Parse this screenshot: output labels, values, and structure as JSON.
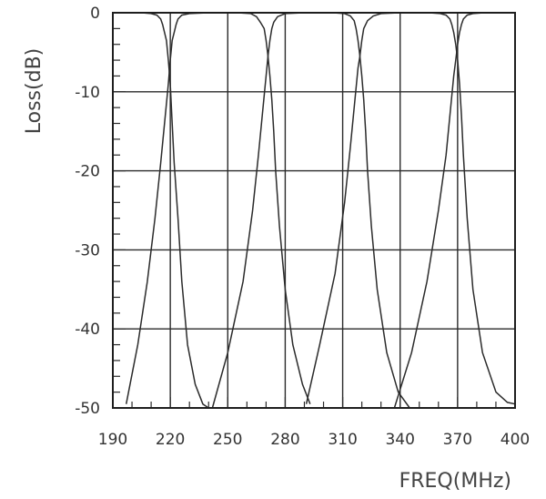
{
  "chart_data": {
    "type": "line",
    "xlabel": "FREQ(MHz)",
    "ylabel": "Loss(dB)",
    "xlim": [
      190,
      400
    ],
    "ylim": [
      -50,
      0
    ],
    "x_ticks": [
      190,
      220,
      250,
      280,
      310,
      340,
      370,
      400
    ],
    "y_ticks": [
      0,
      -10,
      -20,
      -30,
      -40,
      -50
    ],
    "grid": true,
    "series": [
      {
        "x": [
          197,
          203,
          208,
          212,
          215,
          217,
          219,
          220,
          221,
          222,
          223,
          224,
          226,
          230,
          240,
          260,
          400
        ],
        "y": [
          -49.5,
          -42,
          -34,
          -26,
          -19,
          -14,
          -9,
          -6,
          -3.5,
          -2.5,
          -1.5,
          -0.8,
          -0.3,
          -0.1,
          0,
          0,
          0
        ]
      },
      {
        "x": [
          190,
          205,
          210,
          213,
          215,
          216,
          217,
          218,
          219,
          220,
          221,
          222,
          224,
          226,
          229,
          233,
          237,
          240
        ],
        "y": [
          0,
          0,
          -0.1,
          -0.3,
          -0.8,
          -1.5,
          -2.5,
          -3.5,
          -6,
          -9,
          -14,
          -19,
          -26,
          -34,
          -42,
          -47,
          -49.5,
          -50
        ]
      },
      {
        "x": [
          242,
          250,
          258,
          263,
          266,
          268,
          270,
          271,
          272,
          273,
          274,
          276,
          280,
          290,
          310,
          400
        ],
        "y": [
          -50,
          -43,
          -34,
          -25,
          -18,
          -13,
          -8,
          -5.5,
          -3.5,
          -2,
          -1.2,
          -0.5,
          -0.1,
          0,
          0,
          0
        ]
      },
      {
        "x": [
          190,
          255,
          262,
          265,
          267,
          269,
          270,
          271,
          272,
          273,
          274,
          275,
          277,
          280,
          284,
          289,
          293
        ],
        "y": [
          0,
          0,
          -0.1,
          -0.5,
          -1.2,
          -2,
          -3.5,
          -5.5,
          -8,
          -11,
          -15,
          -20,
          -27,
          -35,
          -42,
          -47,
          -49.5
        ]
      },
      {
        "x": [
          291,
          298,
          306,
          311,
          314,
          316,
          318,
          319,
          320,
          321,
          323,
          326,
          330,
          340,
          360,
          400
        ],
        "y": [
          -49.5,
          -42,
          -33,
          -24,
          -17,
          -12,
          -7,
          -5.5,
          -3.5,
          -2,
          -1,
          -0.4,
          -0.1,
          0,
          0,
          0
        ]
      },
      {
        "x": [
          190,
          305,
          311,
          314,
          316,
          317,
          318,
          319,
          320,
          321,
          322,
          323,
          325,
          328,
          333,
          339,
          345
        ],
        "y": [
          0,
          0,
          -0.1,
          -0.4,
          -1,
          -2,
          -3.5,
          -5.5,
          -8,
          -11,
          -15,
          -20,
          -27,
          -35,
          -43,
          -48,
          -50
        ]
      },
      {
        "x": [
          337,
          346,
          354,
          360,
          364,
          366,
          368,
          369,
          370,
          371,
          372,
          373,
          375,
          378,
          384,
          395,
          400
        ],
        "y": [
          -50,
          -43,
          -34,
          -25,
          -18,
          -13,
          -8,
          -6,
          -4,
          -2.5,
          -1.5,
          -0.8,
          -0.3,
          -0.1,
          0,
          0,
          0
        ]
      },
      {
        "x": [
          190,
          355,
          361,
          364,
          366,
          367,
          368,
          369,
          370,
          371,
          372,
          373,
          375,
          378,
          383,
          390,
          396,
          400
        ],
        "y": [
          0,
          0,
          -0.1,
          -0.3,
          -0.8,
          -1.5,
          -2.5,
          -4,
          -6,
          -9,
          -13,
          -18,
          -26,
          -35,
          -43,
          -48,
          -49.3,
          -49.5
        ]
      }
    ]
  }
}
